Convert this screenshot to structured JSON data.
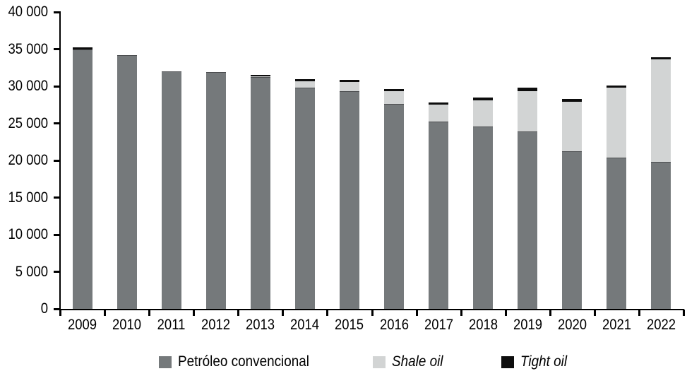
{
  "chart_data": {
    "type": "bar",
    "stacked": true,
    "title": "",
    "xlabel": "",
    "ylabel": "",
    "grid": false,
    "legend_position": "bottom",
    "ylim": [
      0,
      40000
    ],
    "y_tick_step": 5000,
    "y_tick_labels": [
      "0",
      "5 000",
      "10 000",
      "15 000",
      "20 000",
      "25 000",
      "30 000",
      "35 000",
      "40 000"
    ],
    "categories": [
      "2009",
      "2010",
      "2011",
      "2012",
      "2013",
      "2014",
      "2015",
      "2016",
      "2017",
      "2018",
      "2019",
      "2020",
      "2021",
      "2022"
    ],
    "series": [
      {
        "name": "Petróleo convencional",
        "color": "#75797b",
        "values": [
          35000,
          34200,
          32000,
          31900,
          31200,
          29800,
          29300,
          27600,
          25200,
          24600,
          23900,
          21200,
          20400,
          19800
        ]
      },
      {
        "name": "Shale oil",
        "color": "#d2d4d4",
        "values": [
          0,
          0,
          0,
          0,
          150,
          850,
          1300,
          1700,
          2300,
          3500,
          5400,
          6700,
          9400,
          13800
        ]
      },
      {
        "name": "Tight oil",
        "color": "#0d0d0d",
        "values": [
          250,
          0,
          0,
          0,
          200,
          300,
          300,
          350,
          350,
          400,
          500,
          400,
          300,
          300
        ]
      }
    ]
  }
}
